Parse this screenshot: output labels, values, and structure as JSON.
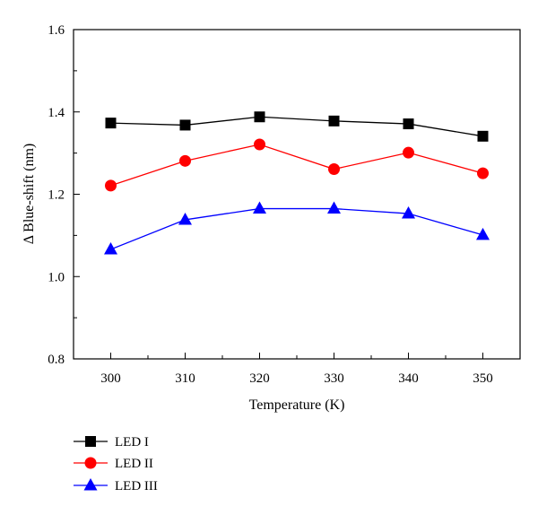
{
  "chart_data": {
    "type": "line",
    "title": "",
    "xlabel": "Temperature (K)",
    "ylabel": "Δ Blue-shift (nm)",
    "x": [
      300,
      310,
      320,
      330,
      340,
      350
    ],
    "x_ticks": [
      "300",
      "310",
      "320",
      "330",
      "340",
      "350"
    ],
    "y_ticks": [
      "0.8",
      "1.0",
      "1.2",
      "1.4",
      "1.6"
    ],
    "xlim": [
      295,
      355
    ],
    "ylim": [
      0.8,
      1.6
    ],
    "grid": false,
    "legend_position": "bottom-left, below plot",
    "series": [
      {
        "name": "LED I",
        "color": "#000000",
        "marker": "square",
        "values": [
          1.373,
          1.368,
          1.388,
          1.378,
          1.371,
          1.341
        ]
      },
      {
        "name": "LED II",
        "color": "#ff0000",
        "marker": "circle",
        "values": [
          1.221,
          1.281,
          1.321,
          1.261,
          1.301,
          1.251
        ]
      },
      {
        "name": "LED III",
        "color": "#0000ff",
        "marker": "triangle",
        "values": [
          1.066,
          1.138,
          1.165,
          1.165,
          1.153,
          1.101
        ]
      }
    ]
  }
}
